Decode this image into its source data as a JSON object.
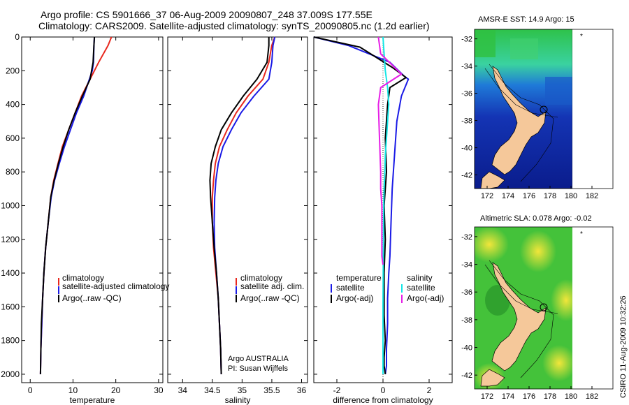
{
  "header": {
    "line1": "Argo profile: CS 5901666_37 06-Aug-2009 20090807_248 37.009S 177.55E",
    "line2": "Climatology: CARS2009. Satellite-adjusted climatology: synTS_20090805.nc (1.2d earlier)"
  },
  "colors": {
    "climatology": "#e8281e",
    "satellite": "#1a1ae6",
    "argo": "#000000",
    "sat_temp": "#1aa0f0",
    "sat_sal": "#14e6e6",
    "argo_sal_diff": "#e61ee6",
    "land": "#f5c89a"
  },
  "footer": {
    "agency": "Argo AUSTRALIA",
    "pi": "PI: Susan Wijffels",
    "stamp": "CSIRO 11-Aug-2009 10:32:26"
  },
  "chart_data": [
    {
      "id": "temperature",
      "type": "line",
      "xlabel": "temperature",
      "xlim": [
        -2,
        31
      ],
      "xticks": [
        0,
        10,
        20,
        30
      ],
      "ylim": [
        0,
        2050
      ],
      "yticks": [
        0,
        200,
        400,
        600,
        800,
        1000,
        1200,
        1400,
        1600,
        1800,
        2000
      ],
      "y_reversed": true,
      "legend": [
        "climatology",
        "satellite-adjusted climatology",
        "Argo(..raw -QC)"
      ],
      "legend_position": "lower-right",
      "series": [
        {
          "name": "climatology",
          "color": "#e8281e",
          "x": [
            19.0,
            18.2,
            16.0,
            14.0,
            12.0,
            10.5,
            9.0,
            7.5,
            6.5,
            5.5,
            4.8,
            4.2,
            3.6,
            3.2,
            2.9,
            2.7,
            2.5,
            2.4
          ],
          "y": [
            0,
            50,
            150,
            250,
            350,
            450,
            550,
            650,
            750,
            850,
            950,
            1100,
            1250,
            1400,
            1550,
            1700,
            1850,
            2000
          ]
        },
        {
          "name": "satellite-adjusted climatology",
          "color": "#1a1ae6",
          "x": [
            15.0,
            14.9,
            14.8,
            14.5,
            12.5,
            10.8,
            9.4,
            8.0,
            6.8,
            5.7,
            4.9,
            4.2,
            3.6,
            3.2,
            2.9,
            2.7,
            2.5,
            2.4
          ],
          "y": [
            0,
            50,
            150,
            200,
            350,
            450,
            550,
            650,
            750,
            850,
            950,
            1100,
            1250,
            1400,
            1550,
            1700,
            1850,
            2000
          ]
        },
        {
          "name": "Argo(..raw -QC)",
          "color": "#000000",
          "x": [
            15.0,
            14.9,
            14.7,
            14.0,
            12.2,
            10.5,
            9.0,
            7.7,
            6.6,
            5.6,
            4.8,
            4.2,
            3.6,
            3.2,
            2.9,
            2.6,
            2.5,
            2.4
          ],
          "y": [
            0,
            50,
            150,
            250,
            350,
            450,
            550,
            650,
            750,
            850,
            950,
            1100,
            1250,
            1400,
            1550,
            1700,
            1850,
            2000
          ]
        }
      ]
    },
    {
      "id": "salinity",
      "type": "line",
      "xlabel": "salinity",
      "xlim": [
        33.75,
        36.1
      ],
      "xticks": [
        34,
        34.5,
        35,
        35.5,
        36
      ],
      "xticklabels": [
        "34",
        "34.5",
        "35",
        "35.5",
        "36"
      ],
      "ylim": [
        0,
        2050
      ],
      "y_reversed": true,
      "legend": [
        "climatology",
        "satellite adj. clim.",
        "Argo(..raw -QC)"
      ],
      "legend_position": "lower-right",
      "series": [
        {
          "name": "climatology",
          "color": "#e8281e",
          "x": [
            35.55,
            35.5,
            35.45,
            35.35,
            35.1,
            34.9,
            34.75,
            34.62,
            34.55,
            34.52,
            34.5,
            34.5,
            34.52,
            34.56,
            34.6,
            34.62,
            34.64,
            34.65
          ],
          "y": [
            0,
            50,
            150,
            250,
            350,
            450,
            550,
            650,
            750,
            850,
            950,
            1100,
            1250,
            1400,
            1550,
            1700,
            1850,
            2000
          ]
        },
        {
          "name": "satellite adj. clim.",
          "color": "#1a1ae6",
          "x": [
            35.55,
            35.52,
            35.5,
            35.45,
            35.2,
            34.98,
            34.82,
            34.68,
            34.6,
            34.56,
            34.54,
            34.53,
            34.54,
            34.57,
            34.6,
            34.62,
            34.64,
            34.65
          ],
          "y": [
            0,
            50,
            150,
            250,
            350,
            450,
            550,
            650,
            750,
            850,
            950,
            1100,
            1250,
            1400,
            1550,
            1700,
            1850,
            2000
          ]
        },
        {
          "name": "Argo(..raw -QC)",
          "color": "#000000",
          "x": [
            35.45,
            35.45,
            35.42,
            35.25,
            35.02,
            34.82,
            34.65,
            34.55,
            34.48,
            34.46,
            34.47,
            34.5,
            34.53,
            34.57,
            34.6,
            34.62,
            34.64,
            34.65
          ],
          "y": [
            0,
            50,
            150,
            250,
            350,
            450,
            550,
            650,
            750,
            850,
            950,
            1100,
            1250,
            1400,
            1550,
            1700,
            1850,
            2000
          ]
        }
      ]
    },
    {
      "id": "difference",
      "type": "line",
      "xlabel": "difference from climatology",
      "xlim": [
        -3,
        3
      ],
      "xticks": [
        -2,
        0,
        2
      ],
      "ylim": [
        0,
        2050
      ],
      "y_reversed": true,
      "legend_temperature": [
        "temperature",
        "satellite",
        "Argo(-adj)"
      ],
      "legend_salinity": [
        "salinity",
        "satellite",
        "Argo(-adj)"
      ],
      "series": [
        {
          "name": "temperature satellite",
          "color": "#1a1ae6",
          "x": [
            -3.0,
            -1.5,
            0.3,
            0.9,
            1.1,
            0.8,
            0.6,
            0.5,
            0.4,
            0.35,
            0.3,
            0.25,
            0.2,
            0.2,
            0.15,
            0.15,
            0.1
          ],
          "y": [
            0,
            50,
            150,
            230,
            250,
            350,
            500,
            700,
            900,
            1100,
            1300,
            1400,
            1550,
            1700,
            1850,
            1950,
            2000
          ]
        },
        {
          "name": "temperature Argo(-adj)",
          "color": "#000000",
          "x": [
            -3.0,
            -1.0,
            0.4,
            1.0,
            0.3,
            0.2,
            0.1,
            0.15,
            0.05,
            0.1,
            0.05,
            0.05,
            0.05,
            0.1,
            0.05,
            0.05,
            0.1
          ],
          "y": [
            0,
            60,
            180,
            240,
            300,
            400,
            600,
            800,
            1000,
            1200,
            1400,
            1500,
            1650,
            1800,
            1900,
            1950,
            2000
          ]
        },
        {
          "name": "salinity satellite",
          "color": "#14e6e6",
          "x": [
            0.0,
            0.05,
            0.1,
            0.2,
            0.25,
            0.2,
            0.15,
            0.1,
            0.08,
            0.05,
            0.03,
            0.02,
            0.01,
            0.0,
            0.0,
            0.0,
            0.0
          ],
          "y": [
            0,
            100,
            200,
            300,
            400,
            500,
            600,
            700,
            800,
            900,
            1000,
            1200,
            1400,
            1600,
            1800,
            1900,
            2000
          ]
        },
        {
          "name": "salinity Argo(-adj)",
          "color": "#e61ee6",
          "x": [
            -0.2,
            -0.1,
            0.8,
            -0.1,
            -0.2,
            -0.15,
            -0.1,
            -0.1,
            -0.05,
            -0.05,
            -0.05,
            -0.05,
            0.0
          ],
          "y": [
            0,
            100,
            220,
            300,
            400,
            600,
            800,
            900,
            1000,
            1100,
            1200,
            1300,
            1350
          ]
        }
      ]
    },
    {
      "id": "sst_map",
      "type": "heatmap",
      "title": "AMSR-E SST: 14.9  Argo: 15",
      "xticks": [
        172,
        174,
        176,
        178,
        180,
        182
      ],
      "yticks": [
        -32,
        -34,
        -36,
        -38,
        -40,
        -42
      ],
      "float_position": [
        177.55,
        -37.009
      ]
    },
    {
      "id": "sla_map",
      "type": "heatmap",
      "title": "Altimetric SLA: 0.078  Argo: -0.02",
      "xticks": [
        172,
        174,
        176,
        178,
        180,
        182
      ],
      "yticks": [
        -32,
        -34,
        -36,
        -38,
        -40,
        -42
      ],
      "float_position": [
        177.55,
        -37.009
      ]
    }
  ]
}
